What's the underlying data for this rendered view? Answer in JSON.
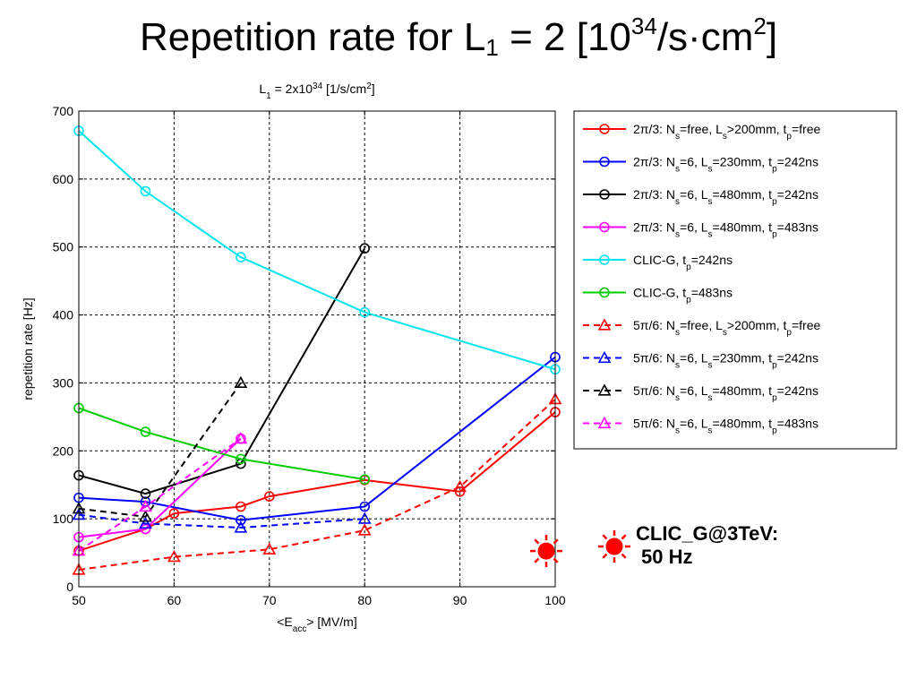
{
  "slide": {
    "title_main": "Repetition rate for L",
    "title_sub": "1",
    "title_mid": " = 2 [10",
    "title_sup": "34",
    "title_mid2": "/s·cm",
    "title_sup2": "2",
    "title_end": "]"
  },
  "note": {
    "line1": "CLIC_G@3TeV:",
    "line2": "50 Hz",
    "color": "#ff0000"
  },
  "chart_data": {
    "type": "line",
    "title": {
      "a": "L",
      "sub": "1",
      "b": " = 2x10",
      "sup": "34",
      "c": " [1/s/cm",
      "sup2": "2",
      "d": "]"
    },
    "xlabel": {
      "a": "<E",
      "sub": "acc",
      "b": "> [MV/m]"
    },
    "ylabel": "repetition rate [Hz]",
    "xlim": [
      50,
      100
    ],
    "ylim": [
      0,
      700
    ],
    "xticks": [
      50,
      60,
      70,
      80,
      90,
      100
    ],
    "yticks": [
      0,
      100,
      200,
      300,
      400,
      500,
      600,
      700
    ],
    "grid": true,
    "legend_position": "right-outside",
    "series": [
      {
        "legend": {
          "pre": "2π/3: N",
          "s1": "s",
          "m1": "=free, L",
          "s2": "s",
          "m2": ">200mm, t",
          "s3": "p",
          "end": "=free"
        },
        "color": "#ff0000",
        "dash": false,
        "marker": "circle",
        "x": [
          50,
          57,
          60,
          67,
          70,
          80,
          90,
          100
        ],
        "y": [
          53,
          85,
          108,
          118,
          133,
          157,
          140,
          257
        ]
      },
      {
        "legend": {
          "pre": "2π/3: N",
          "s1": "s",
          "m1": "=6, L",
          "s2": "s",
          "m2": "=230mm, t",
          "s3": "p",
          "end": "=242ns"
        },
        "color": "#0000ff",
        "dash": false,
        "marker": "circle",
        "x": [
          50,
          57,
          67,
          80,
          100
        ],
        "y": [
          131,
          125,
          98,
          118,
          338
        ]
      },
      {
        "legend": {
          "pre": "2π/3: N",
          "s1": "s",
          "m1": "=6, L",
          "s2": "s",
          "m2": "=480mm, t",
          "s3": "p",
          "end": "=242ns"
        },
        "color": "#000000",
        "dash": false,
        "marker": "circle",
        "x": [
          50,
          57,
          67,
          80
        ],
        "y": [
          164,
          137,
          181,
          498
        ]
      },
      {
        "legend": {
          "pre": "2π/3: N",
          "s1": "s",
          "m1": "=6, L",
          "s2": "s",
          "m2": "=480mm, t",
          "s3": "p",
          "end": "=483ns"
        },
        "color": "#ff00ff",
        "dash": false,
        "marker": "circle",
        "x": [
          50,
          57,
          67
        ],
        "y": [
          73,
          85,
          218
        ]
      },
      {
        "legend": {
          "pre": "CLIC-G, t",
          "s1": "",
          "m1": "",
          "s2": "",
          "m2": "",
          "s3": "p",
          "end": "=242ns"
        },
        "color": "#00e5ee",
        "dash": false,
        "marker": "circle",
        "x": [
          50,
          57,
          67,
          80,
          100
        ],
        "y": [
          671,
          582,
          485,
          404,
          320
        ]
      },
      {
        "legend": {
          "pre": "CLIC-G, t",
          "s1": "",
          "m1": "",
          "s2": "",
          "m2": "",
          "s3": "p",
          "end": "=483ns"
        },
        "color": "#00cc00",
        "dash": false,
        "marker": "circle",
        "x": [
          50,
          57,
          67,
          80
        ],
        "y": [
          263,
          228,
          188,
          158
        ]
      },
      {
        "legend": {
          "pre": "5π/6: N",
          "s1": "s",
          "m1": "=free, L",
          "s2": "s",
          "m2": ">200mm, t",
          "s3": "p",
          "end": "=free"
        },
        "color": "#ff0000",
        "dash": true,
        "marker": "triangle",
        "x": [
          50,
          60,
          70,
          80,
          90,
          100
        ],
        "y": [
          25,
          44,
          55,
          83,
          147,
          276
        ]
      },
      {
        "legend": {
          "pre": "5π/6: N",
          "s1": "s",
          "m1": "=6, L",
          "s2": "s",
          "m2": "=230mm, t",
          "s3": "p",
          "end": "=242ns"
        },
        "color": "#0000ff",
        "dash": true,
        "marker": "triangle",
        "x": [
          50,
          57,
          67,
          80
        ],
        "y": [
          106,
          93,
          87,
          100
        ]
      },
      {
        "legend": {
          "pre": "5π/6: N",
          "s1": "s",
          "m1": "=6, L",
          "s2": "s",
          "m2": "=480mm, t",
          "s3": "p",
          "end": "=242ns"
        },
        "color": "#000000",
        "dash": true,
        "marker": "triangle",
        "x": [
          50,
          57,
          67
        ],
        "y": [
          115,
          103,
          300
        ]
      },
      {
        "legend": {
          "pre": "5π/6: N",
          "s1": "s",
          "m1": "=6, L",
          "s2": "s",
          "m2": "=480mm, t",
          "s3": "p",
          "end": "=483ns"
        },
        "color": "#ff00ff",
        "dash": true,
        "marker": "triangle",
        "x": [
          50,
          57,
          67
        ],
        "y": [
          53,
          118,
          218
        ]
      }
    ],
    "points": [
      {
        "label": "CLIC_G@3TeV",
        "x": 100,
        "y": 50,
        "color": "#ff0000",
        "marker": "sun"
      }
    ]
  }
}
